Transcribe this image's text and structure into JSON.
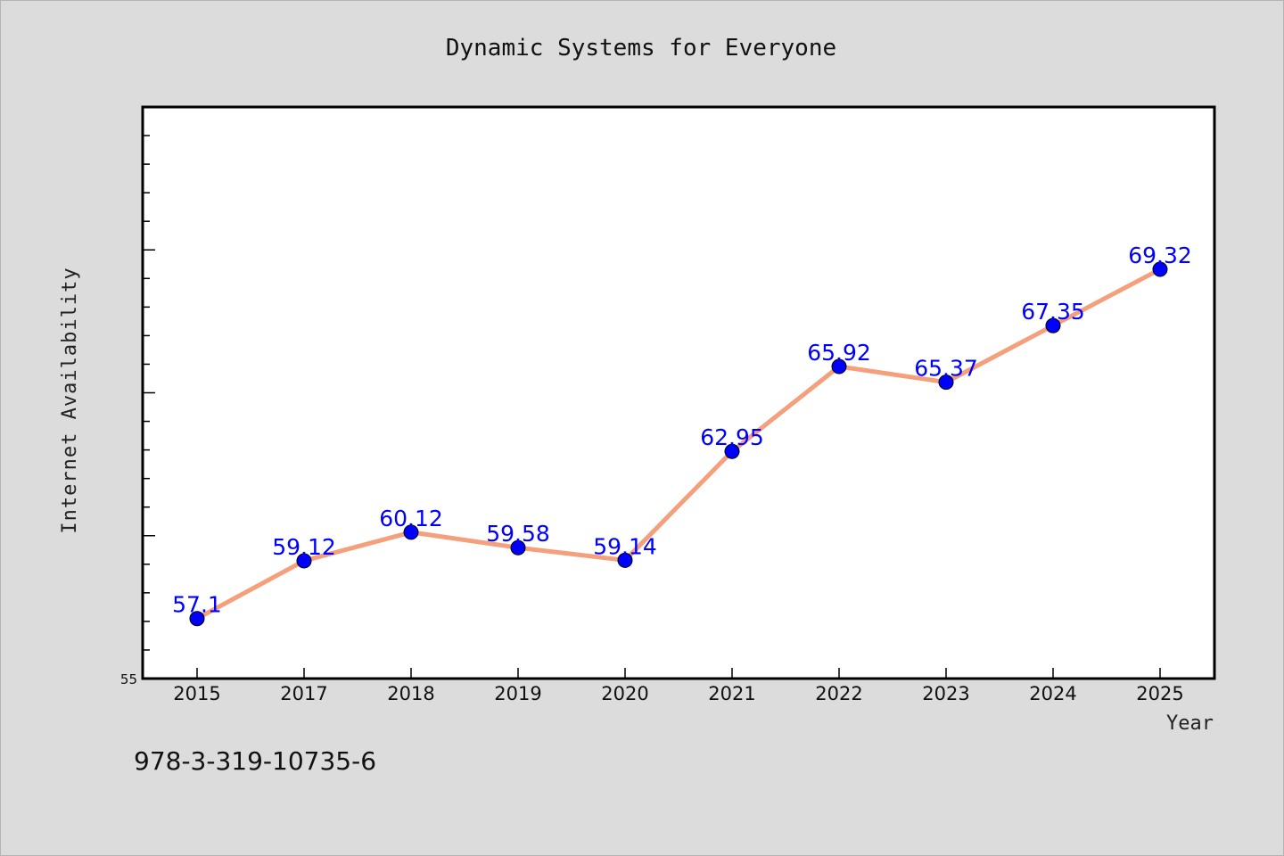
{
  "chart_data": {
    "type": "line",
    "title": "Dynamic Systems for Everyone",
    "xlabel": "Year",
    "ylabel": "Internet Availability",
    "categories": [
      "2015",
      "2017",
      "2018",
      "2019",
      "2020",
      "2021",
      "2022",
      "2023",
      "2024",
      "2025"
    ],
    "values": [
      57.1,
      59.12,
      60.12,
      59.58,
      59.14,
      62.95,
      65.92,
      65.37,
      67.35,
      69.32
    ],
    "data_labels": [
      "57.1",
      "59.12",
      "60.12",
      "59.58",
      "59.14",
      "62.95",
      "65.92",
      "65.37",
      "67.35",
      "69.32"
    ],
    "ylim": [
      55,
      75
    ],
    "yticks_labeled": [
      "55"
    ],
    "grid": false,
    "line_color": "#f4a07c",
    "marker_color": "#0000ff",
    "label_color": "#0000ff"
  },
  "footer": {
    "isbn": "978-3-319-10735-6"
  }
}
